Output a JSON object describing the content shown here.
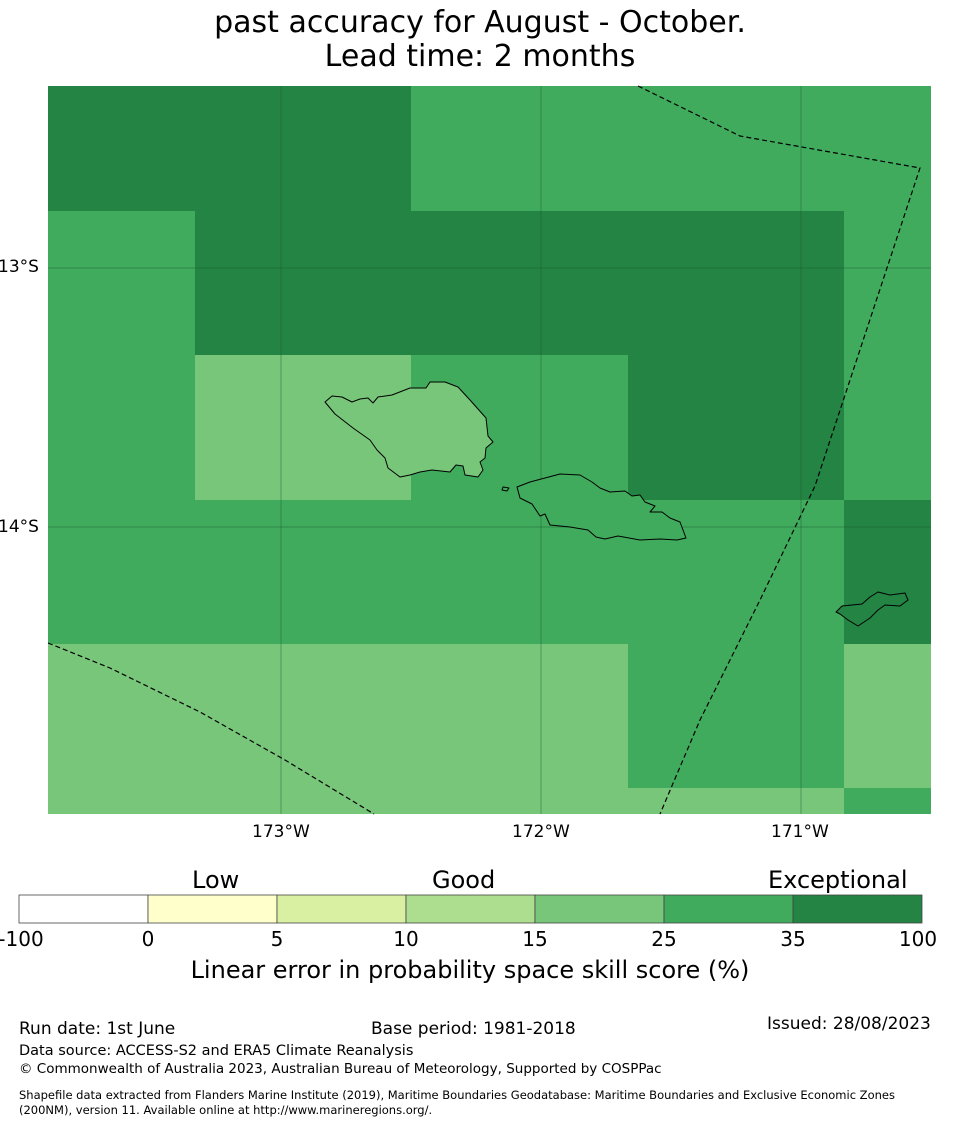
{
  "title": {
    "line1": "past accuracy for August - October.",
    "line2": "Lead time: 2 months"
  },
  "map": {
    "lon_ticks": [
      "173°W",
      "172°W",
      "171°W"
    ],
    "lat_ticks": [
      "13°S",
      "14°S"
    ]
  },
  "colorbar": {
    "categories": [
      "Low",
      "Good",
      "Exceptional"
    ],
    "ticks": [
      "-100",
      "0",
      "5",
      "10",
      "15",
      "25",
      "35",
      "100"
    ],
    "colors": [
      "#ffffff",
      "#ffffcc",
      "#d9f0a3",
      "#addd8e",
      "#78c679",
      "#41ab5d",
      "#238443"
    ],
    "label": "Linear error in probability space skill score (%)"
  },
  "footer": {
    "run_date": "Run date: 1st June",
    "base_period": "Base period: 1981-2018",
    "issued": "Issued: 28/08/2023",
    "data_source": "Data source: ACCESS-S2 and ERA5 Climate Reanalysis",
    "copyright": "© Commonwealth of Australia 2023, Australian Bureau of Meteorology, Supported by COSPPac",
    "shapefile_line1": "Shapefile data extracted from Flanders Marine Institute (2019), Maritime Boundaries Geodatabase: Maritime Boundaries and Exclusive Economic Zones",
    "shapefile_line2": "(200NM), version 11. Available online at http://www.marineregions.org/."
  }
}
